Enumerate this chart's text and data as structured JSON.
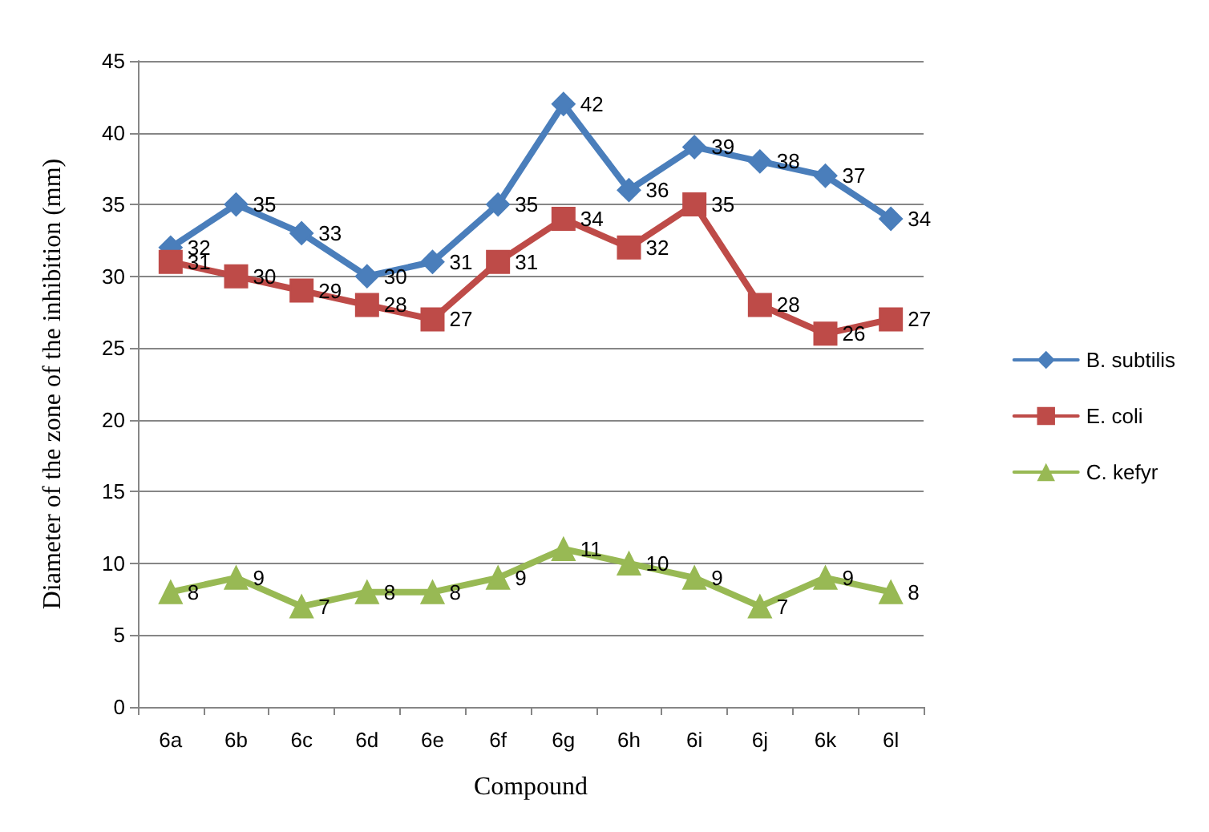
{
  "chart_data": {
    "type": "line",
    "xlabel": "Compound",
    "ylabel": "Diameter of the zone of the inhibition (mm)",
    "categories": [
      "6a",
      "6b",
      "6c",
      "6d",
      "6e",
      "6f",
      "6g",
      "6h",
      "6i",
      "6j",
      "6k",
      "6l"
    ],
    "series": [
      {
        "name": "B. subtilis",
        "color": "#4a7ebb",
        "marker": "diamond",
        "values": [
          32,
          35,
          33,
          30,
          31,
          35,
          42,
          36,
          39,
          38,
          37,
          34
        ]
      },
      {
        "name": "E. coli",
        "color": "#be4b48",
        "marker": "square",
        "values": [
          31,
          30,
          29,
          28,
          27,
          31,
          34,
          32,
          35,
          28,
          26,
          27
        ]
      },
      {
        "name": "C. kefyr",
        "color": "#98b954",
        "marker": "triangle",
        "values": [
          8,
          9,
          7,
          8,
          8,
          9,
          11,
          10,
          9,
          7,
          9,
          8
        ]
      }
    ],
    "ylim": [
      0,
      45
    ],
    "yticks": [
      0,
      5,
      10,
      15,
      20,
      25,
      30,
      35,
      40,
      45
    ],
    "grid": "y",
    "legend": "right",
    "data_labels": true
  }
}
